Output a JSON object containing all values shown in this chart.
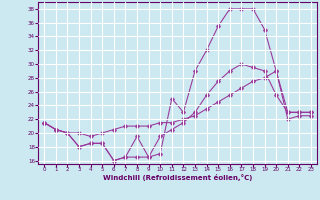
{
  "xlabel": "Windchill (Refroidissement éolien,°C)",
  "ylabel": "",
  "background_color": "#cce8f0",
  "grid_color": "#ffffff",
  "line_color": "#993399",
  "xlim": [
    -0.5,
    23.5
  ],
  "ylim": [
    15.5,
    39
  ],
  "yticks": [
    16,
    18,
    20,
    22,
    24,
    26,
    28,
    30,
    32,
    34,
    36,
    38
  ],
  "xticks": [
    0,
    1,
    2,
    3,
    4,
    5,
    6,
    7,
    8,
    9,
    10,
    11,
    12,
    13,
    14,
    15,
    16,
    17,
    18,
    19,
    20,
    21,
    22,
    23
  ],
  "line1_x": [
    0,
    1,
    2,
    3,
    4,
    5,
    6,
    7,
    8,
    9,
    10,
    11,
    12,
    13,
    14,
    15,
    16,
    17,
    18,
    19,
    20,
    21,
    22,
    23
  ],
  "line1_y": [
    21.5,
    20.5,
    20.0,
    18.0,
    18.5,
    18.5,
    16.0,
    16.5,
    19.5,
    16.5,
    17.0,
    25.0,
    23.0,
    29.0,
    32.0,
    35.5,
    38.0,
    38.0,
    38.0,
    35.0,
    29.0,
    23.0,
    23.0,
    23.0
  ],
  "line2_x": [
    0,
    1,
    2,
    3,
    4,
    5,
    6,
    7,
    8,
    9,
    10,
    11,
    12,
    13,
    14,
    15,
    16,
    17,
    18,
    19,
    20,
    21,
    22,
    23
  ],
  "line2_y": [
    21.5,
    20.5,
    20.0,
    20.0,
    19.5,
    20.0,
    20.5,
    21.0,
    21.0,
    21.0,
    21.5,
    21.5,
    22.0,
    22.5,
    23.5,
    24.5,
    25.5,
    26.5,
    27.5,
    28.0,
    29.0,
    22.0,
    22.5,
    22.5
  ],
  "line3_x": [
    0,
    1,
    2,
    3,
    4,
    5,
    6,
    7,
    8,
    9,
    10,
    11,
    12,
    13,
    14,
    15,
    16,
    17,
    18,
    19,
    20,
    21,
    22,
    23
  ],
  "line3_y": [
    21.5,
    20.5,
    20.0,
    18.0,
    18.5,
    18.5,
    16.0,
    16.5,
    16.5,
    16.5,
    19.5,
    20.5,
    21.5,
    23.0,
    25.5,
    27.5,
    29.0,
    30.0,
    29.5,
    29.0,
    25.5,
    23.0,
    23.0,
    23.0
  ]
}
